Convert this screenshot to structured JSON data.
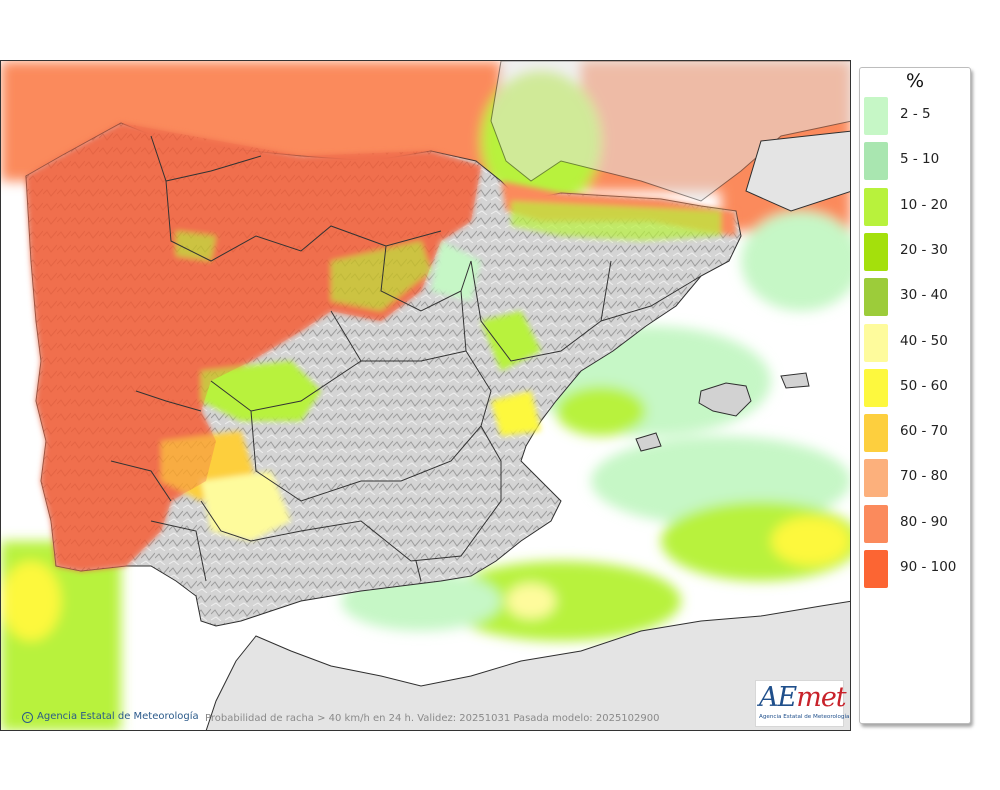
{
  "legend": {
    "unit": "%",
    "classes": [
      {
        "label": "2 - 5",
        "color": "#c6f7c6"
      },
      {
        "label": "5 - 10",
        "color": "#a9e6b0"
      },
      {
        "label": "10 - 20",
        "color": "#b8f23c"
      },
      {
        "label": "20 - 30",
        "color": "#a4e00c"
      },
      {
        "label": "30 - 40",
        "color": "#9ccc3a"
      },
      {
        "label": "40 - 50",
        "color": "#fefb9c"
      },
      {
        "label": "50 - 60",
        "color": "#fdf83e"
      },
      {
        "label": "60 - 70",
        "color": "#fdcf3e"
      },
      {
        "label": "70 - 80",
        "color": "#fcb07c"
      },
      {
        "label": "80 - 90",
        "color": "#fb8a5c"
      },
      {
        "label": "90 - 100",
        "color": "#fc6533"
      }
    ]
  },
  "footer": {
    "credit": "Agencia Estatal de Meteorología",
    "caption": "Probabilidad de racha > 40 km/h en 24 h. Validez: 20251031 Pasada modelo: 2025102900"
  },
  "logo": {
    "wordmark_a": "AE",
    "wordmark_b": "met",
    "subtitle": "Agencia Estatal de Meteorología"
  },
  "colors": {
    "sea_background": "#ffffff",
    "land_relief": "#d0d0d0",
    "borders": "#2f2f2f"
  }
}
